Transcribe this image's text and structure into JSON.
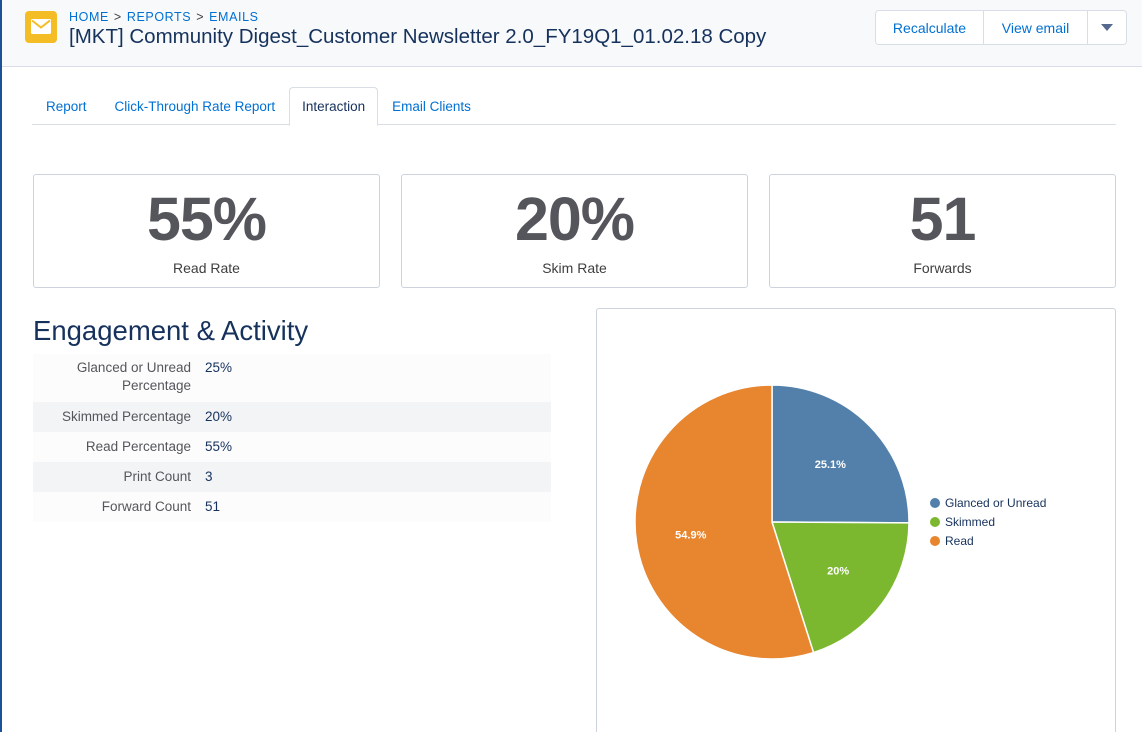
{
  "header": {
    "breadcrumb": [
      "HOME",
      "REPORTS",
      "EMAILS"
    ],
    "breadcrumb_separator": ">",
    "title": "[MKT] Community Digest_Customer Newsletter 2.0_FY19Q1_01.02.18 Copy",
    "buttons": {
      "recalculate": "Recalculate",
      "view_email": "View email"
    },
    "icon": "envelope-icon",
    "icon_color": "#f4bc25"
  },
  "tabs": [
    {
      "label": "Report",
      "active": false
    },
    {
      "label": "Click-Through Rate Report",
      "active": false
    },
    {
      "label": "Interaction",
      "active": true
    },
    {
      "label": "Email Clients",
      "active": false
    }
  ],
  "stats": [
    {
      "value": "55%",
      "label": "Read Rate"
    },
    {
      "value": "20%",
      "label": "Skim Rate"
    },
    {
      "value": "51",
      "label": "Forwards"
    }
  ],
  "engagement": {
    "title": "Engagement & Activity",
    "rows": [
      {
        "label": "Glanced or Unread Percentage",
        "value": "25%"
      },
      {
        "label": "Skimmed Percentage",
        "value": "20%"
      },
      {
        "label": "Read Percentage",
        "value": "55%"
      },
      {
        "label": "Print Count",
        "value": "3"
      },
      {
        "label": "Forward Count",
        "value": "51"
      }
    ]
  },
  "chart_data": {
    "type": "pie",
    "slices": [
      {
        "name": "Glanced or Unread",
        "value": 25.1,
        "label": "25.1%",
        "color": "#5280aa"
      },
      {
        "name": "Skimmed",
        "value": 20,
        "label": "20%",
        "color": "#7cb82f"
      },
      {
        "name": "Read",
        "value": 54.9,
        "label": "54.9%",
        "color": "#e8852f"
      }
    ],
    "legend_position": "right"
  }
}
